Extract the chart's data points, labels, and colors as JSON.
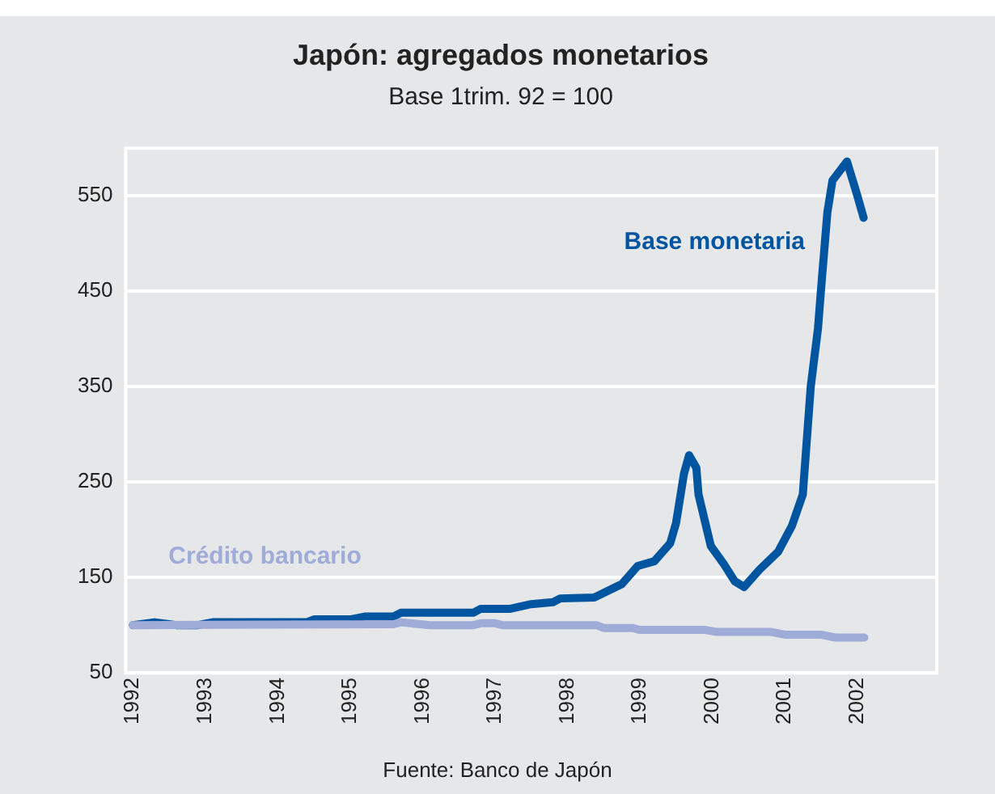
{
  "chart_data": {
    "type": "line",
    "title": "Japón: agregados monetarios",
    "subtitle": "Base 1trim. 92 = 100",
    "annotations": [
      "Fuente: Banco de Japón"
    ],
    "xlim": [
      1991.9,
      2003.1
    ],
    "xticks": [
      1992,
      1993,
      1994,
      1995,
      1996,
      1997,
      1998,
      1999,
      2000,
      2001,
      2002
    ],
    "ylim": [
      50,
      600
    ],
    "yticks": [
      50,
      150,
      250,
      350,
      450,
      550
    ],
    "grid": "y",
    "legend": false,
    "marker": "none",
    "line_style": "solid",
    "series": [
      {
        "name": "Base monetaria",
        "color": "#0055a0",
        "x": [
          1992,
          1992.3,
          1992.6,
          1992.9,
          1993.1,
          1994.4,
          1994.5,
          1995,
          1995.2,
          1995.6,
          1995.7,
          1996.7,
          1996.8,
          1997.2,
          1997.5,
          1997.8,
          1997.9,
          1998.37,
          1998.75,
          1998.97,
          1999.2,
          1999.42,
          1999.5,
          1999.61,
          1999.68,
          1999.78,
          1999.81,
          1999.98,
          2000.16,
          2000.31,
          2000.44,
          2000.65,
          2000.91,
          2001.1,
          2001.25,
          2001.36,
          2001.46,
          2001.5,
          2001.59,
          2001.66,
          2001.86,
          2002.0,
          2002.09
        ],
        "values": [
          100,
          103,
          100,
          100,
          103,
          103,
          106,
          106,
          109,
          109,
          113,
          113,
          117,
          117,
          122,
          124,
          128,
          129,
          143,
          162,
          167,
          186,
          207,
          259,
          278,
          265,
          237,
          183,
          164,
          146,
          140,
          158,
          177,
          204,
          237,
          350,
          411,
          450,
          533,
          566,
          586,
          551,
          527
        ]
      },
      {
        "name": "Crédito bancario",
        "color": "#a0acd8",
        "x": [
          1992,
          1995.6,
          1995.7,
          1996.1,
          1996.7,
          1996.8,
          1997.0,
          1997.1,
          1998.4,
          1998.5,
          1998.9,
          1999.0,
          1999.9,
          2000.05,
          2000.8,
          2001.0,
          2001.5,
          2001.7,
          2002.1
        ],
        "values": [
          100,
          101,
          103,
          100,
          100,
          102,
          102,
          100,
          100,
          97,
          97,
          95,
          95,
          93,
          93,
          90,
          90,
          87,
          87
        ]
      }
    ]
  }
}
